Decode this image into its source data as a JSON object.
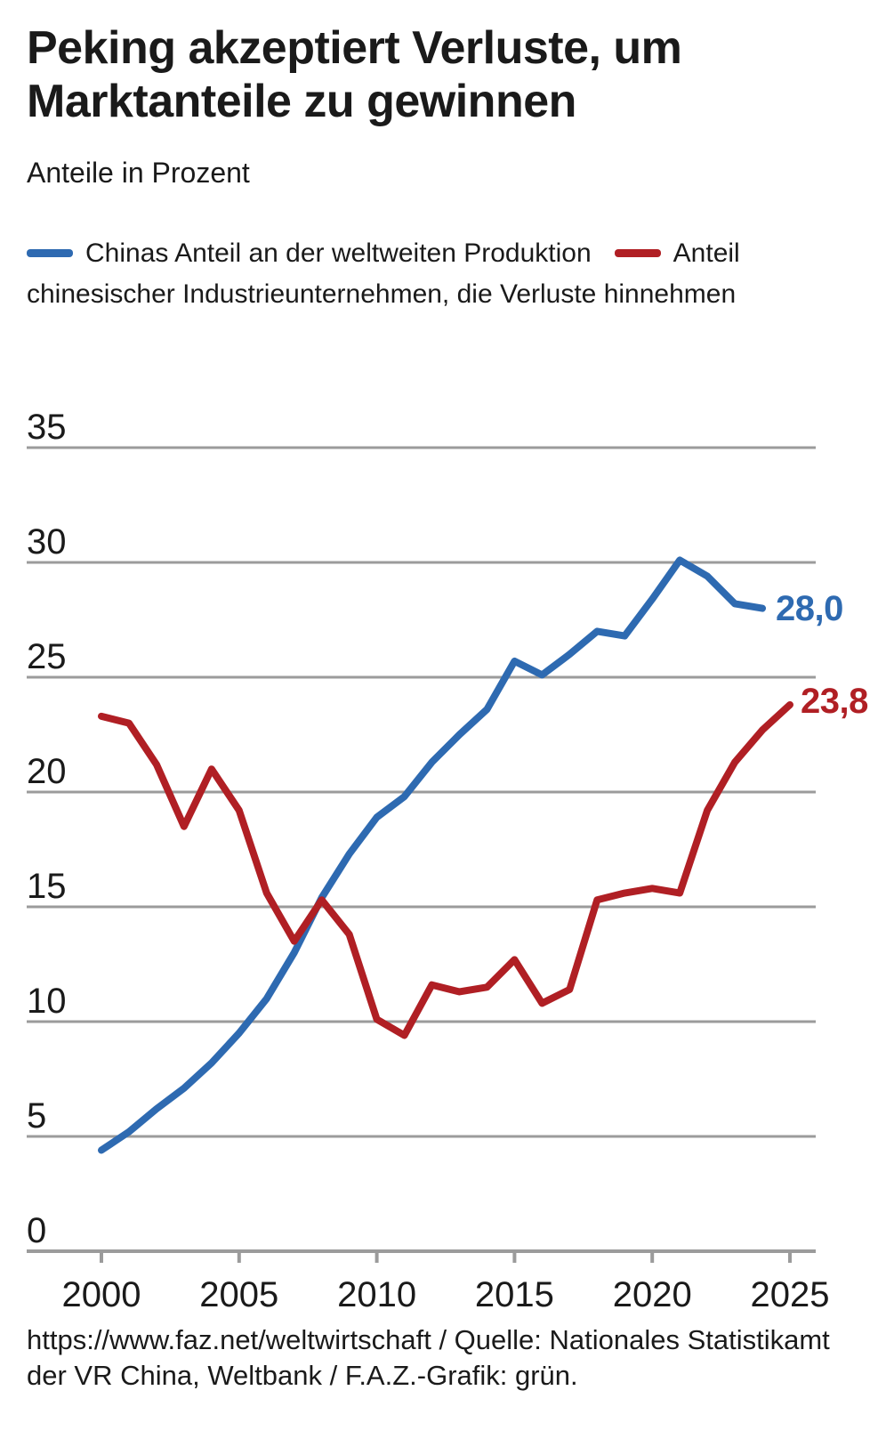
{
  "page": {
    "title": "Peking akzeptiert Verluste, um Marktanteile zu gewinnen",
    "subtitle": "Anteile in Prozent",
    "footer": "https://www.faz.net/weltwirtschaft / Quelle: Nationales Statistikamt der VR China, Weltbank / F.A.Z.-Grafik: grün."
  },
  "chart_data": {
    "type": "line",
    "title": "Peking akzeptiert Verluste, um Marktanteile zu gewinnen",
    "subtitle": "Anteile in Prozent",
    "unit": "Prozent",
    "grid": "horizontal",
    "legend_position": "top",
    "xlim": [
      1997.3,
      2026
    ],
    "ylim": [
      0,
      35
    ],
    "x_ticks": [
      2000,
      2005,
      2010,
      2015,
      2020,
      2025
    ],
    "y_ticks": [
      0,
      5,
      10,
      15,
      20,
      25,
      30,
      35
    ],
    "colors": {
      "grid": "#9b9b9b",
      "axis": "#9b9b9b",
      "text": "#1a1a1a"
    },
    "series": [
      {
        "name": "Chinas Anteil an der weltweiten Produktion",
        "color": "#2e6ab1",
        "end_label": "28,0",
        "x": [
          2000,
          2001,
          2002,
          2003,
          2004,
          2005,
          2006,
          2007,
          2008,
          2009,
          2010,
          2011,
          2012,
          2013,
          2014,
          2015,
          2016,
          2017,
          2018,
          2019,
          2020,
          2021,
          2022,
          2023,
          2024
        ],
        "values": [
          4.4,
          5.2,
          6.2,
          7.1,
          8.2,
          9.5,
          11.0,
          13.0,
          15.4,
          17.3,
          18.9,
          19.8,
          21.3,
          22.5,
          23.6,
          25.7,
          25.1,
          26.0,
          27.0,
          26.8,
          28.4,
          30.1,
          29.4,
          28.2,
          28.0
        ]
      },
      {
        "name": "Anteil chinesischer Industrieunternehmen, die Verluste hinnehmen",
        "color": "#b01f24",
        "end_label": "23,8",
        "x": [
          2000,
          2001,
          2002,
          2003,
          2004,
          2005,
          2006,
          2007,
          2008,
          2009,
          2010,
          2011,
          2012,
          2013,
          2014,
          2015,
          2016,
          2017,
          2018,
          2019,
          2020,
          2021,
          2022,
          2023,
          2024,
          2025
        ],
        "values": [
          23.3,
          23.0,
          21.2,
          18.5,
          21.0,
          19.2,
          15.6,
          13.5,
          15.3,
          13.8,
          10.1,
          9.4,
          11.6,
          11.3,
          11.5,
          12.7,
          10.8,
          11.4,
          15.3,
          15.6,
          15.8,
          15.6,
          19.2,
          21.3,
          22.7,
          23.8
        ]
      }
    ]
  }
}
